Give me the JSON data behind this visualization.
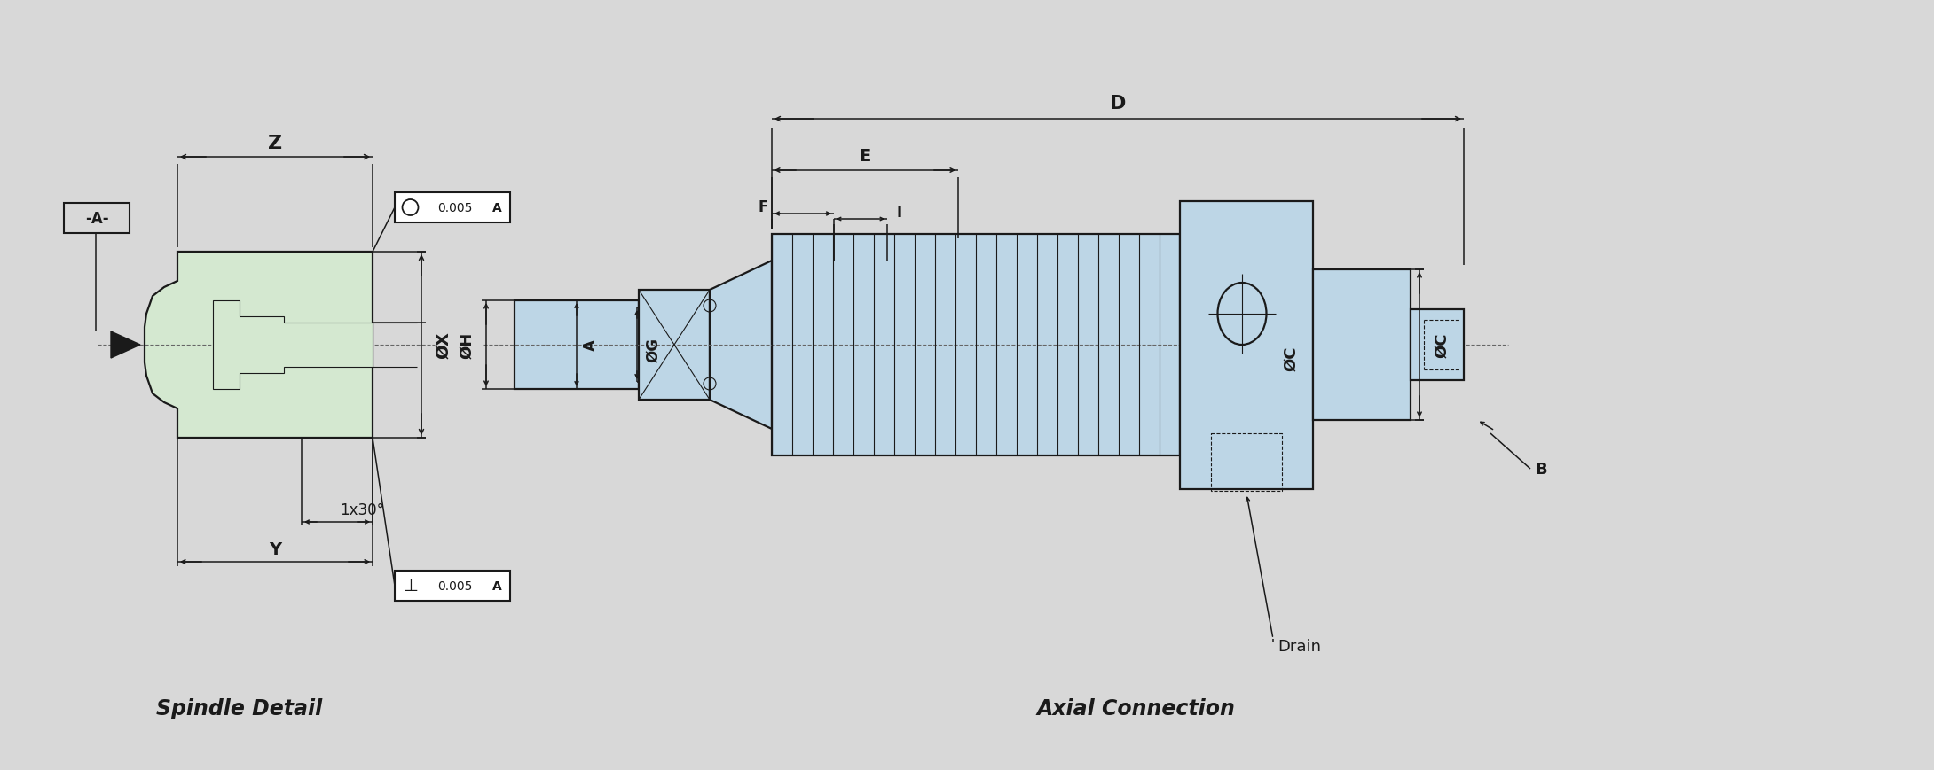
{
  "bg_color": "#d8d8d8",
  "line_color": "#1a1a1a",
  "fill_green": "#d4e8d0",
  "fill_blue": "#bdd6e6",
  "title_left": "Spindle Detail",
  "title_right": "Axial Connection",
  "label_A_datum": "-A-",
  "label_Z": "Z",
  "label_X": "ØX",
  "label_Y": "Y",
  "label_angle": "1x30°",
  "label_D": "D",
  "label_E": "E",
  "label_F": "F",
  "label_I": "I",
  "label_H": "ØH",
  "label_G": "ØG",
  "label_C": "ØC",
  "label_A2": "A",
  "label_B": "B",
  "label_drain": "Drain"
}
